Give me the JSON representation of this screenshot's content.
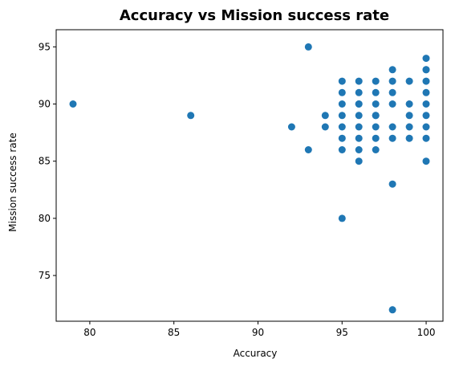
{
  "chart_data": {
    "type": "scatter",
    "title": "Accuracy vs Mission success rate",
    "xlabel": "Accuracy",
    "ylabel": "Mission success rate",
    "xlim": [
      78,
      101
    ],
    "ylim": [
      71,
      96.5
    ],
    "xticks": [
      80,
      85,
      90,
      95,
      100
    ],
    "yticks": [
      75,
      80,
      85,
      90,
      95
    ],
    "grid": false,
    "marker_color": "#1f77b4",
    "series": [
      {
        "x": [
          79,
          86,
          92,
          93,
          93,
          94,
          94,
          95,
          95,
          95,
          95,
          95,
          95,
          95,
          95,
          96,
          96,
          96,
          96,
          96,
          96,
          96,
          96,
          96,
          97,
          97,
          97,
          97,
          97,
          97,
          97,
          97,
          98,
          98,
          98,
          98,
          98,
          98,
          98,
          98,
          99,
          99,
          99,
          99,
          99,
          100,
          100,
          100,
          100,
          100,
          100,
          100,
          100,
          100,
          100
        ],
        "y": [
          90,
          89,
          88,
          95,
          86,
          89,
          88,
          92,
          91,
          89,
          88,
          87,
          86,
          90,
          80,
          92,
          91,
          90,
          89,
          88,
          87,
          86,
          85,
          90,
          92,
          91,
          90,
          89,
          88,
          87,
          86,
          89,
          93,
          92,
          91,
          90,
          88,
          87,
          83,
          72,
          92,
          90,
          89,
          88,
          87,
          94,
          93,
          92,
          91,
          90,
          89,
          88,
          87,
          85,
          93
        ]
      }
    ]
  }
}
